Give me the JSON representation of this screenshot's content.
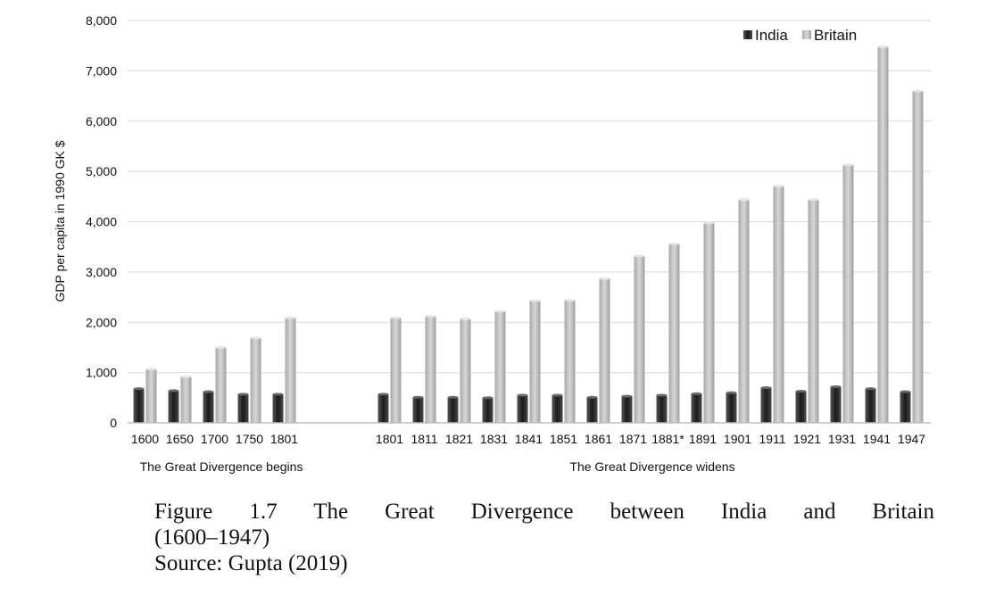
{
  "chart_data": {
    "type": "bar",
    "ylabel": "GDP per capita in 1990 GK $",
    "ylim": [
      0,
      8000
    ],
    "yticks": [
      "0",
      "1,000",
      "2,000",
      "3,000",
      "4,000",
      "5,000",
      "6,000",
      "7,000",
      "8,000"
    ],
    "ytick_values": [
      0,
      1000,
      2000,
      3000,
      4000,
      5000,
      6000,
      7000,
      8000
    ],
    "legend": {
      "placement": "top-right",
      "entries": [
        "India",
        "Britain"
      ]
    },
    "series_colors": {
      "India": "#2b2b2b",
      "Britain": "#bdbdbd"
    },
    "groups": [
      {
        "label": "The Great Divergence begins",
        "categories": [
          "1600",
          "1650",
          "1700",
          "1750",
          "1801"
        ],
        "series": [
          {
            "name": "India",
            "values": [
              680,
              640,
              620,
              570,
              570
            ]
          },
          {
            "name": "Britain",
            "values": [
              1070,
              920,
              1500,
              1690,
              2090
            ]
          }
        ]
      },
      {
        "label": "The Great Divergence widens",
        "categories": [
          "1801",
          "1811",
          "1821",
          "1831",
          "1841",
          "1851",
          "1861",
          "1871",
          "1881*",
          "1891",
          "1901",
          "1911",
          "1921",
          "1931",
          "1941",
          "1947"
        ],
        "series": [
          {
            "name": "India",
            "values": [
              570,
              510,
              510,
              500,
              550,
              550,
              510,
              530,
              550,
              580,
              600,
              700,
              630,
              720,
              680,
              620
            ]
          },
          {
            "name": "Britain",
            "values": [
              2090,
              2120,
              2070,
              2220,
              2430,
              2440,
              2870,
              3320,
              3560,
              3980,
              4440,
              4710,
              4440,
              5130,
              7480,
              6600
            ]
          }
        ]
      }
    ]
  },
  "caption": {
    "line1": "Figure 1.7 The Great Divergence between India and Britain",
    "line2": "(1600–1947)",
    "line3": "Source: Gupta (2019)"
  }
}
